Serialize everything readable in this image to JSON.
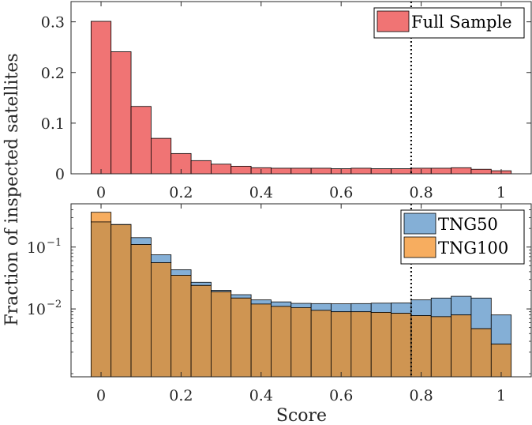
{
  "figure": {
    "ylabel": "Fraction of inspected satellites",
    "xlabel": "Score"
  },
  "colors": {
    "full_sample": "#f07474",
    "tng50": "#84afd6",
    "tng100": "#f7ad5f",
    "overlap": "#cf9552",
    "axis": "#262626"
  },
  "chart_data": [
    {
      "type": "bar",
      "id": "top",
      "bins": {
        "start": -0.025,
        "width": 0.05,
        "count": 21
      },
      "xlim": [
        -0.075,
        1.075
      ],
      "ylim": [
        0,
        0.34
      ],
      "xticks": [
        0,
        0.2,
        0.4,
        0.6,
        0.8,
        1
      ],
      "xticklabels": [
        "0",
        "0.2",
        "0.4",
        "0.6",
        "0.8",
        "1"
      ],
      "yticks": [
        0,
        0.1,
        0.2,
        0.3
      ],
      "yticklabels": [
        "0",
        "0.1",
        "0.2",
        "0.3"
      ],
      "threshold": 0.775,
      "series": [
        {
          "name": "Full Sample",
          "values": [
            0.301,
            0.241,
            0.133,
            0.07,
            0.04,
            0.026,
            0.019,
            0.015,
            0.012,
            0.011,
            0.011,
            0.011,
            0.01,
            0.011,
            0.01,
            0.01,
            0.011,
            0.011,
            0.012,
            0.009,
            0.006
          ]
        }
      ],
      "legend": {
        "position": "top-right",
        "entries": [
          "Full Sample"
        ]
      }
    },
    {
      "type": "bar",
      "id": "bottom",
      "yscale": "log",
      "bins": {
        "start": -0.025,
        "width": 0.05,
        "count": 21
      },
      "xlim": [
        -0.075,
        1.075
      ],
      "ylim": [
        0.0008,
        0.5
      ],
      "xticks": [
        0,
        0.2,
        0.4,
        0.6,
        0.8,
        1
      ],
      "xticklabels": [
        "0",
        "0.2",
        "0.4",
        "0.6",
        "0.8",
        "1"
      ],
      "yticks": [
        0.01,
        0.1
      ],
      "yticklabels": [
        [
          "10",
          "−2"
        ],
        [
          "10",
          "−1"
        ]
      ],
      "threshold": 0.775,
      "series": [
        {
          "name": "TNG50",
          "values": [
            0.255,
            0.232,
            0.142,
            0.075,
            0.043,
            0.027,
            0.02,
            0.017,
            0.014,
            0.013,
            0.0123,
            0.0122,
            0.0121,
            0.0122,
            0.0124,
            0.0125,
            0.014,
            0.015,
            0.016,
            0.015,
            0.008
          ]
        },
        {
          "name": "TNG100",
          "values": [
            0.365,
            0.23,
            0.11,
            0.056,
            0.035,
            0.024,
            0.019,
            0.015,
            0.012,
            0.011,
            0.0105,
            0.0095,
            0.009,
            0.009,
            0.0088,
            0.0085,
            0.0078,
            0.0075,
            0.008,
            0.0048,
            0.0027
          ]
        }
      ],
      "legend": {
        "position": "top-right",
        "entries": [
          "TNG50",
          "TNG100"
        ]
      }
    }
  ]
}
